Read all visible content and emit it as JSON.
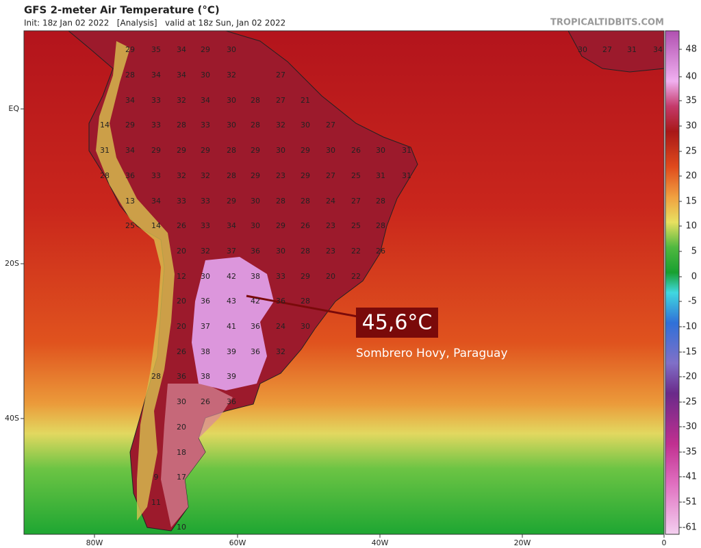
{
  "header": {
    "title": "GFS 2-meter Air Temperature (°C)",
    "subtitle": "Init: 18z Jan 02 2022   [Analysis]   valid at 18z Sun, Jan 02 2022",
    "site": "TROPICALTIDBITS.COM"
  },
  "axes": {
    "lat_labels": [
      "EQ",
      "20S",
      "40S"
    ],
    "lon_labels": [
      "80W",
      "60W",
      "40W",
      "20W",
      "0"
    ]
  },
  "colorbar": {
    "ticks": [
      48,
      40,
      35,
      30,
      25,
      20,
      15,
      10,
      5,
      0,
      -5,
      -10,
      -15,
      -20,
      -25,
      -30,
      -35,
      -41,
      -51,
      -61
    ]
  },
  "map": {
    "labels": [
      29,
      35,
      34,
      29,
      30,
      30,
      27,
      31,
      34,
      28,
      34,
      34,
      30,
      32,
      27,
      34,
      33,
      32,
      34,
      30,
      28,
      27,
      21,
      14,
      29,
      33,
      28,
      33,
      30,
      28,
      32,
      30,
      27,
      31,
      34,
      29,
      29,
      29,
      28,
      29,
      30,
      29,
      30,
      26,
      30,
      31,
      28,
      36,
      33,
      32,
      32,
      28,
      29,
      23,
      29,
      27,
      25,
      31,
      31,
      13,
      34,
      33,
      33,
      29,
      30,
      28,
      28,
      24,
      27,
      28,
      25,
      14,
      26,
      33,
      34,
      30,
      29,
      26,
      23,
      25,
      28,
      20,
      32,
      37,
      36,
      30,
      28,
      23,
      22,
      26,
      12,
      30,
      42,
      38,
      33,
      29,
      20,
      22,
      20,
      36,
      43,
      42,
      36,
      28,
      20,
      37,
      41,
      36,
      24,
      30,
      26,
      38,
      39,
      36,
      32,
      28,
      36,
      38,
      39,
      30,
      26,
      36,
      20,
      18,
      9,
      17,
      11,
      10
    ]
  },
  "annotation": {
    "value": "45,6°C",
    "place": "Sombrero Hovy, Paraguay"
  }
}
